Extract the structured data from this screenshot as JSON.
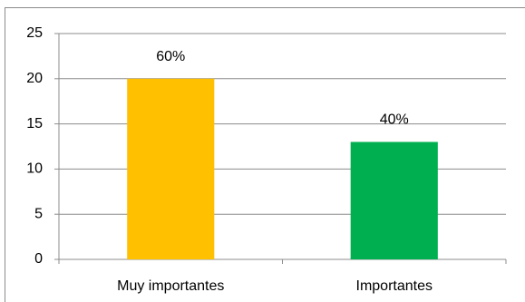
{
  "chart_data": {
    "type": "bar",
    "categories": [
      "Muy importantes",
      "Importantes"
    ],
    "values": [
      20,
      13
    ],
    "colors": [
      "#ffc000",
      "#00b050"
    ],
    "annotations": [
      "60%",
      "40%"
    ],
    "ylim": [
      0,
      25
    ],
    "yticks": [
      0,
      5,
      10,
      15,
      20,
      25
    ],
    "grid": true
  }
}
